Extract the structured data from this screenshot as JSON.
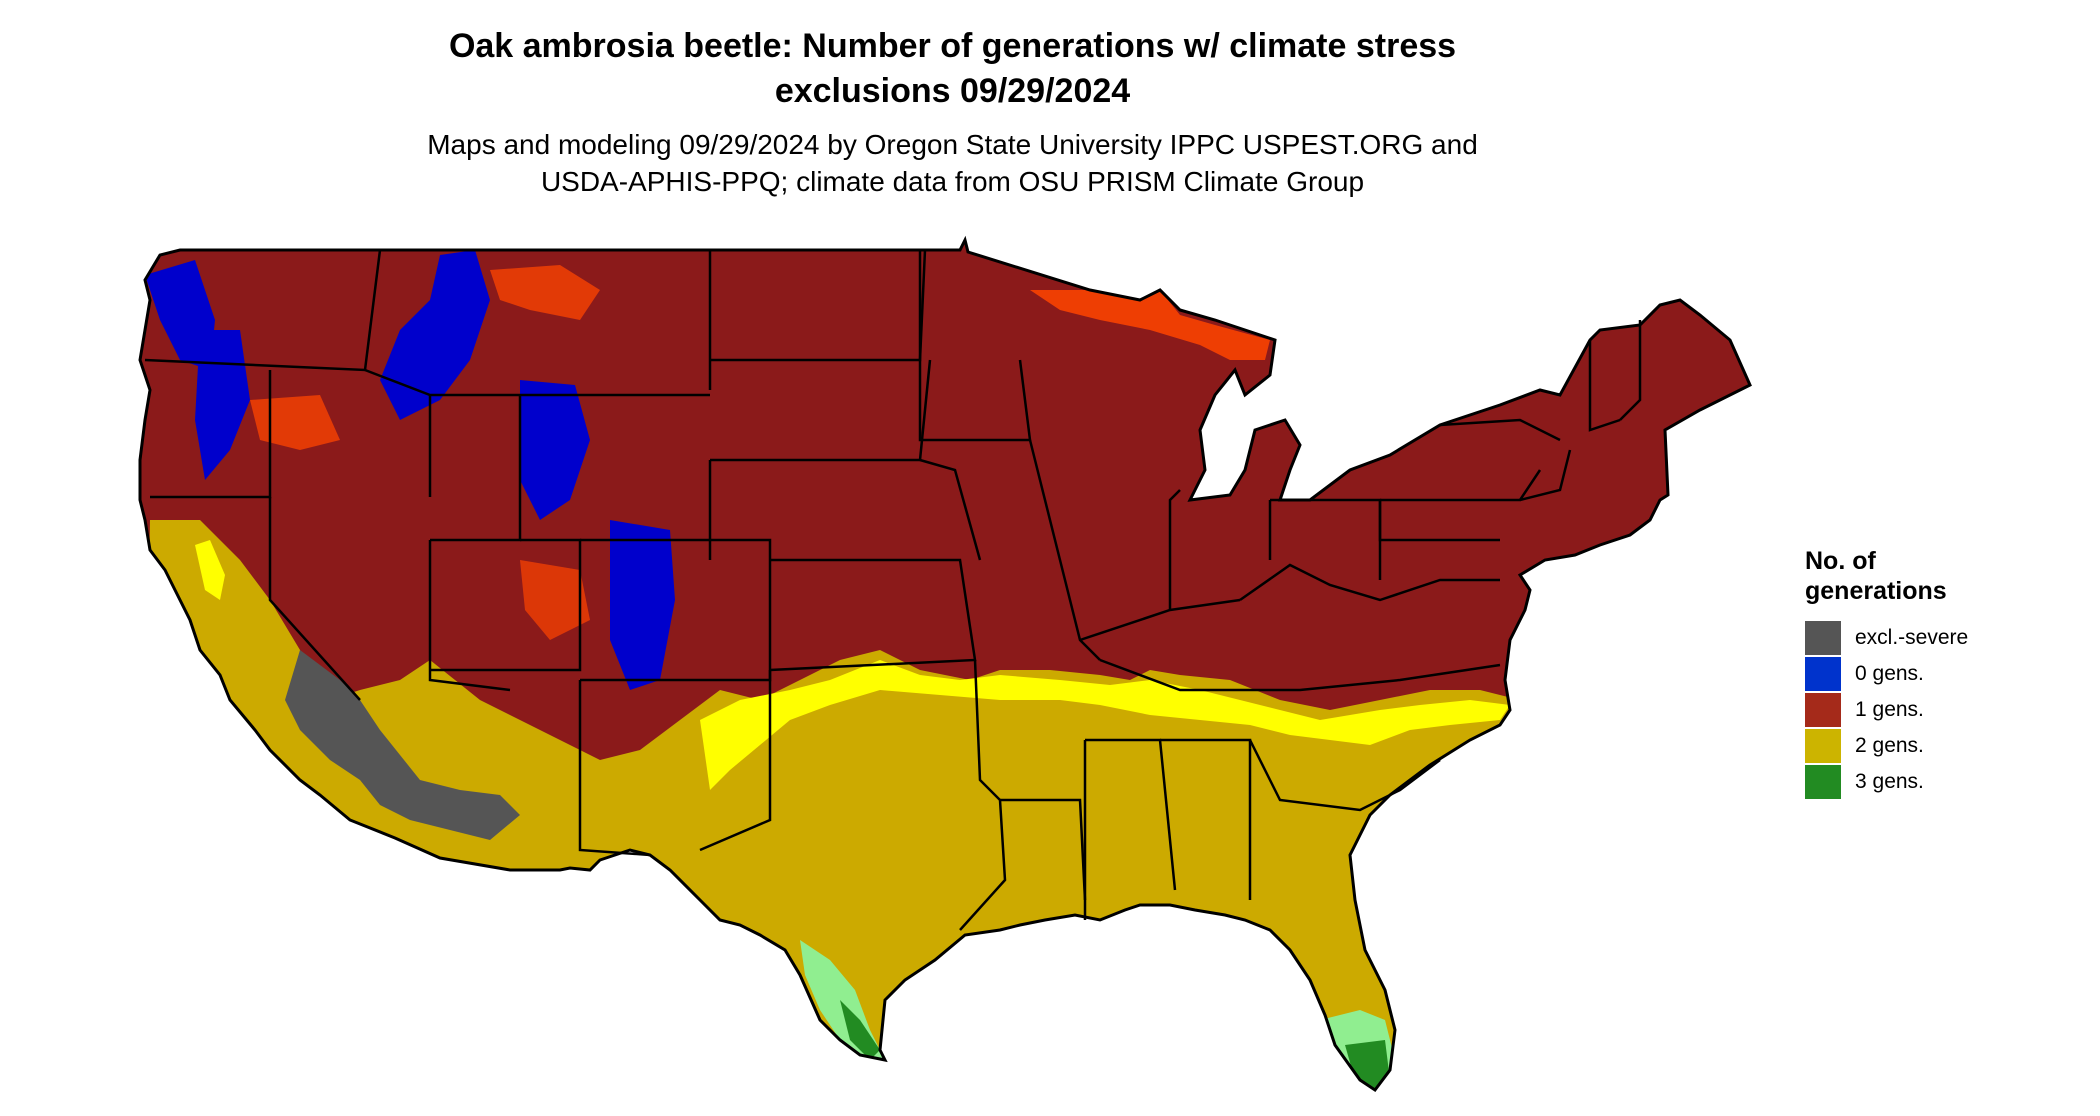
{
  "title": {
    "line1": "Oak ambrosia beetle: Number of generations w/ climate stress",
    "line2": "exclusions 09/29/2024"
  },
  "subtitle": {
    "line1": "Maps and modeling 09/29/2024 by Oregon State University IPPC USPEST.ORG and",
    "line2": "USDA-APHIS-PPQ; climate data from OSU PRISM Climate Group"
  },
  "legend": {
    "title_line1": "No. of",
    "title_line2": "generations",
    "items": [
      {
        "label": "excl.-severe",
        "color": "#555555"
      },
      {
        "label": "0 gens.",
        "color": "#0033cc"
      },
      {
        "label": "1 gens.",
        "color": "#a52a1a"
      },
      {
        "label": "2 gens.",
        "color": "#ccb400"
      },
      {
        "label": "3 gens.",
        "color": "#228b22"
      }
    ]
  },
  "map_colors": {
    "one_gen_dark": "#8b1a1a",
    "one_gen_light": "#ff4500",
    "two_gen": "#ccaa00",
    "two_gen_light": "#ffff00",
    "three_gen_light": "#90ee90",
    "three_gen_dark": "#228b22",
    "zero_gen": "#0000cc",
    "excluded": "#555555"
  }
}
